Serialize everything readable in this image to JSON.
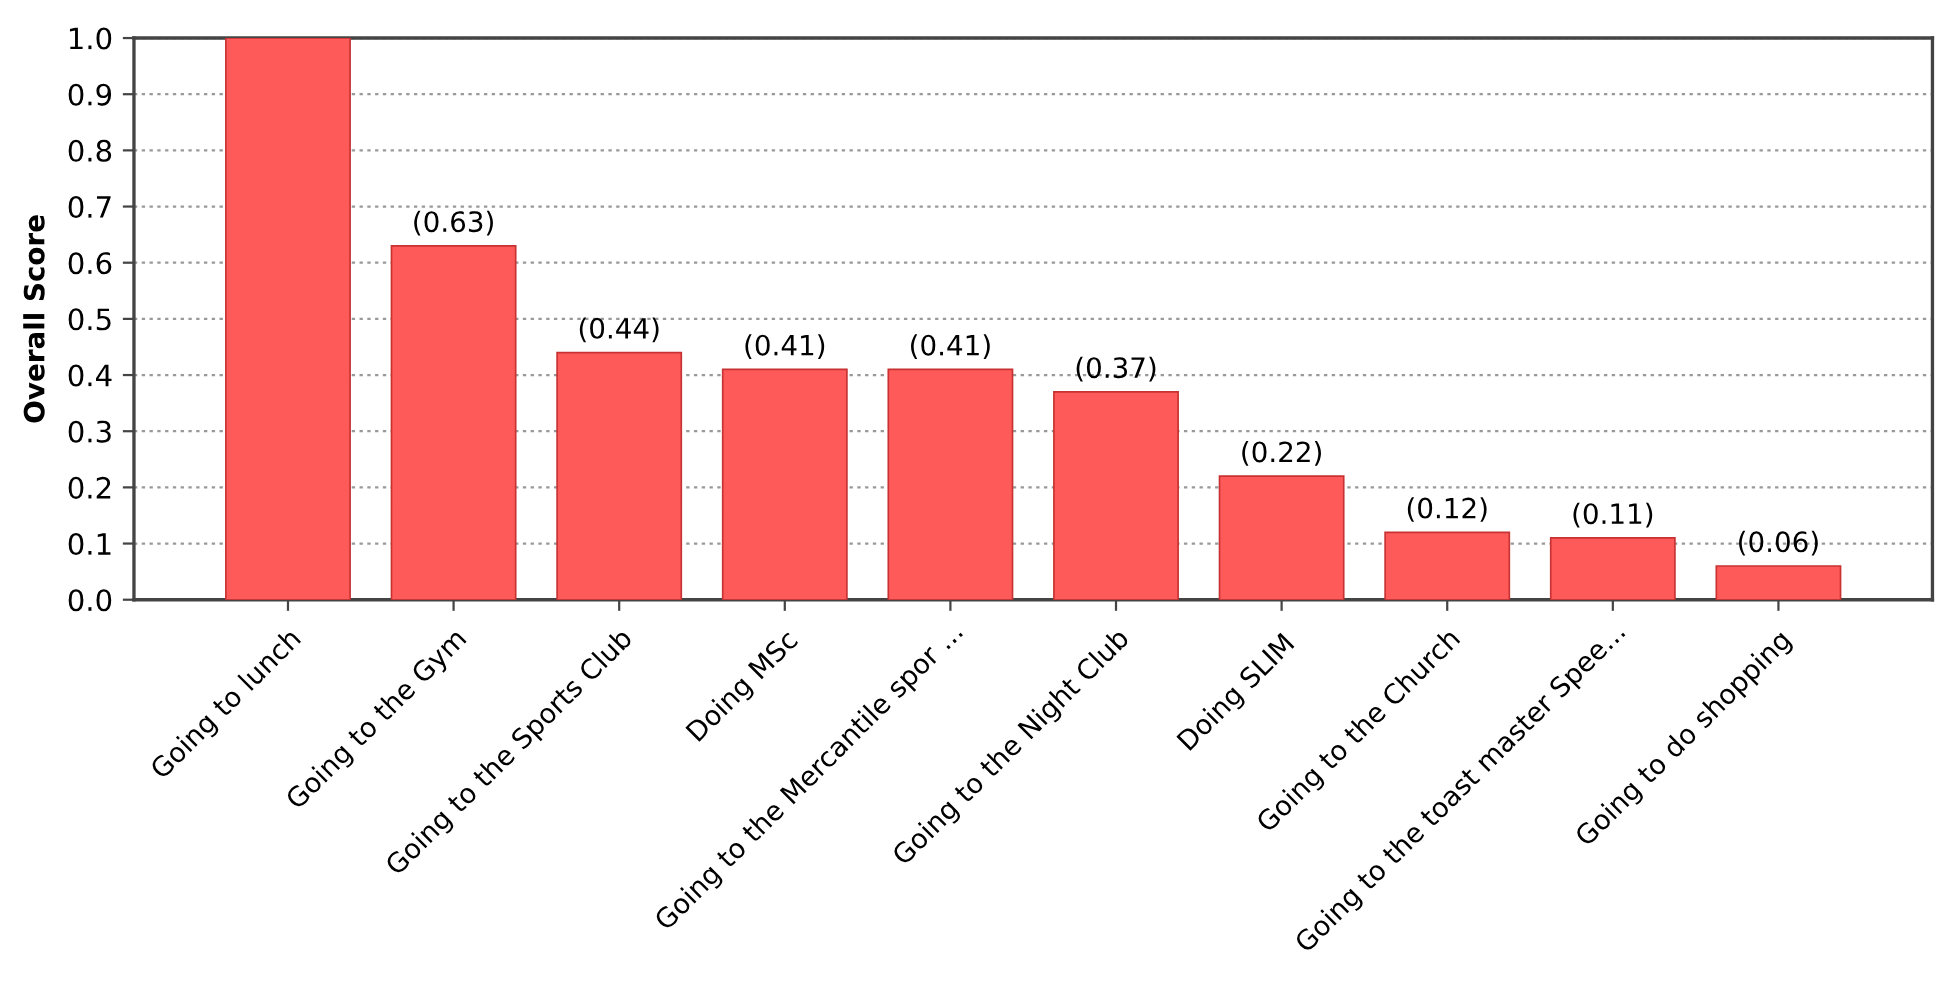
{
  "chart_data": {
    "type": "bar",
    "ylabel": "Overall Score",
    "categories": [
      "Going to lunch",
      "Going to the Gym",
      "Going to the Sports Club",
      "Doing MSc",
      "Going to the Mercantile spor ...",
      "Going to the Night Club",
      "Doing SLIM",
      "Going to the Church",
      "Going to the toast master Spee...",
      "Going to do shopping"
    ],
    "values": [
      1.0,
      0.63,
      0.44,
      0.41,
      0.41,
      0.37,
      0.22,
      0.12,
      0.11,
      0.06
    ],
    "value_labels": [
      null,
      "(0.63)",
      "(0.44)",
      "(0.41)",
      "(0.41)",
      "(0.37)",
      "(0.22)",
      "(0.12)",
      "(0.11)",
      "(0.06)"
    ],
    "color": "#ff5a5a",
    "ylim": [
      0,
      1
    ],
    "yticks": [
      {
        "value": 0,
        "label": "0.0"
      },
      {
        "value": 0.1,
        "label": "0.1"
      },
      {
        "value": 0.2,
        "label": "0.2"
      },
      {
        "value": 0.3,
        "label": "0.3"
      },
      {
        "value": 0.4,
        "label": "0.4"
      },
      {
        "value": 0.5,
        "label": "0.5"
      },
      {
        "value": 0.6,
        "label": "0.6"
      },
      {
        "value": 0.7,
        "label": "0.7"
      },
      {
        "value": 0.8,
        "label": "0.8"
      },
      {
        "value": 0.9,
        "label": "0.9"
      },
      {
        "value": 1,
        "label": "1.0"
      }
    ],
    "grid": "y"
  }
}
